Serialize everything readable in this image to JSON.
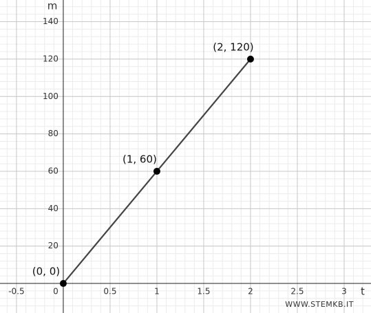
{
  "chart_data": {
    "type": "line",
    "x_label": "t",
    "y_label": "m",
    "x": [
      0,
      1,
      2
    ],
    "series": [
      {
        "color": "#444444",
        "values": [
          0,
          60,
          120
        ]
      }
    ],
    "point_labels": [
      "(0, 0)",
      "(1, 60)",
      "(2, 120)"
    ],
    "xlim": [
      -0.676,
      3.287
    ],
    "ylim": [
      -15.8,
      151.6
    ],
    "xticks": [
      -0.5,
      0,
      0.5,
      1,
      1.5,
      2,
      2.5,
      3
    ],
    "yticks": [
      20,
      40,
      60,
      80,
      100,
      120,
      140
    ],
    "grid": true,
    "minor_grid": true,
    "watermark": "WWW.STEMKB.IT"
  }
}
